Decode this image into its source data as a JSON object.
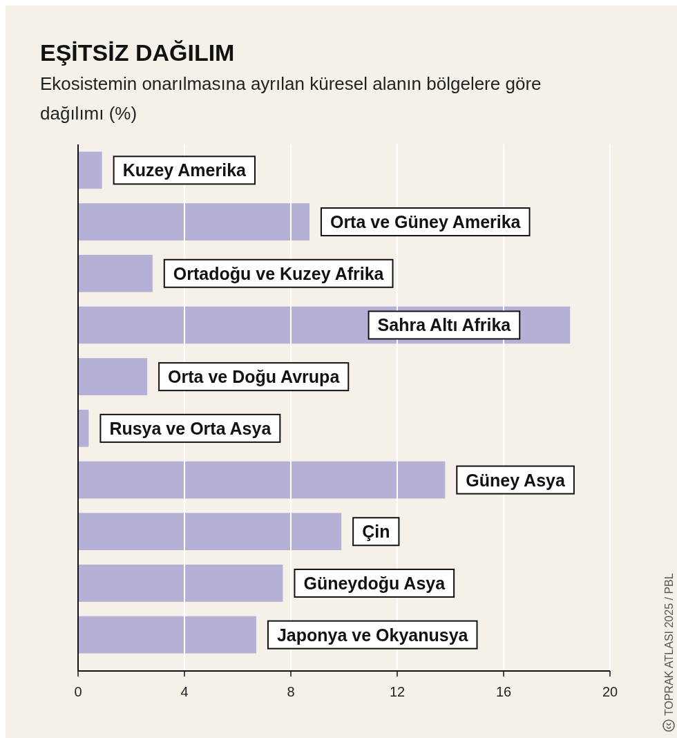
{
  "chart_data": {
    "type": "bar",
    "orientation": "horizontal",
    "title": "EŞİTSİZ DAĞILIM",
    "subtitle": "Ekosistemin onarılmasına ayrılan küresel alanın bölgelere göre dağılımı (%)",
    "categories": [
      "Kuzey Amerika",
      "Orta ve Güney Amerika",
      "Ortadoğu ve Kuzey Afrika",
      "Sahra Altı Afrika",
      "Orta ve Doğu Avrupa",
      "Rusya ve Orta Asya",
      "Güney Asya",
      "Çin",
      "Güneydoğu Asya",
      "Japonya ve Okyanusya"
    ],
    "values": [
      0.9,
      8.7,
      2.8,
      18.5,
      2.6,
      0.4,
      13.8,
      9.9,
      7.7,
      6.7
    ],
    "color": "#b5b0d6",
    "xlim": [
      0,
      20
    ],
    "xticks": [
      0,
      4,
      8,
      12,
      16,
      20
    ],
    "grid": "x",
    "annotations": [
      "TOPRAK ATLASI 2025 / PBL"
    ]
  }
}
